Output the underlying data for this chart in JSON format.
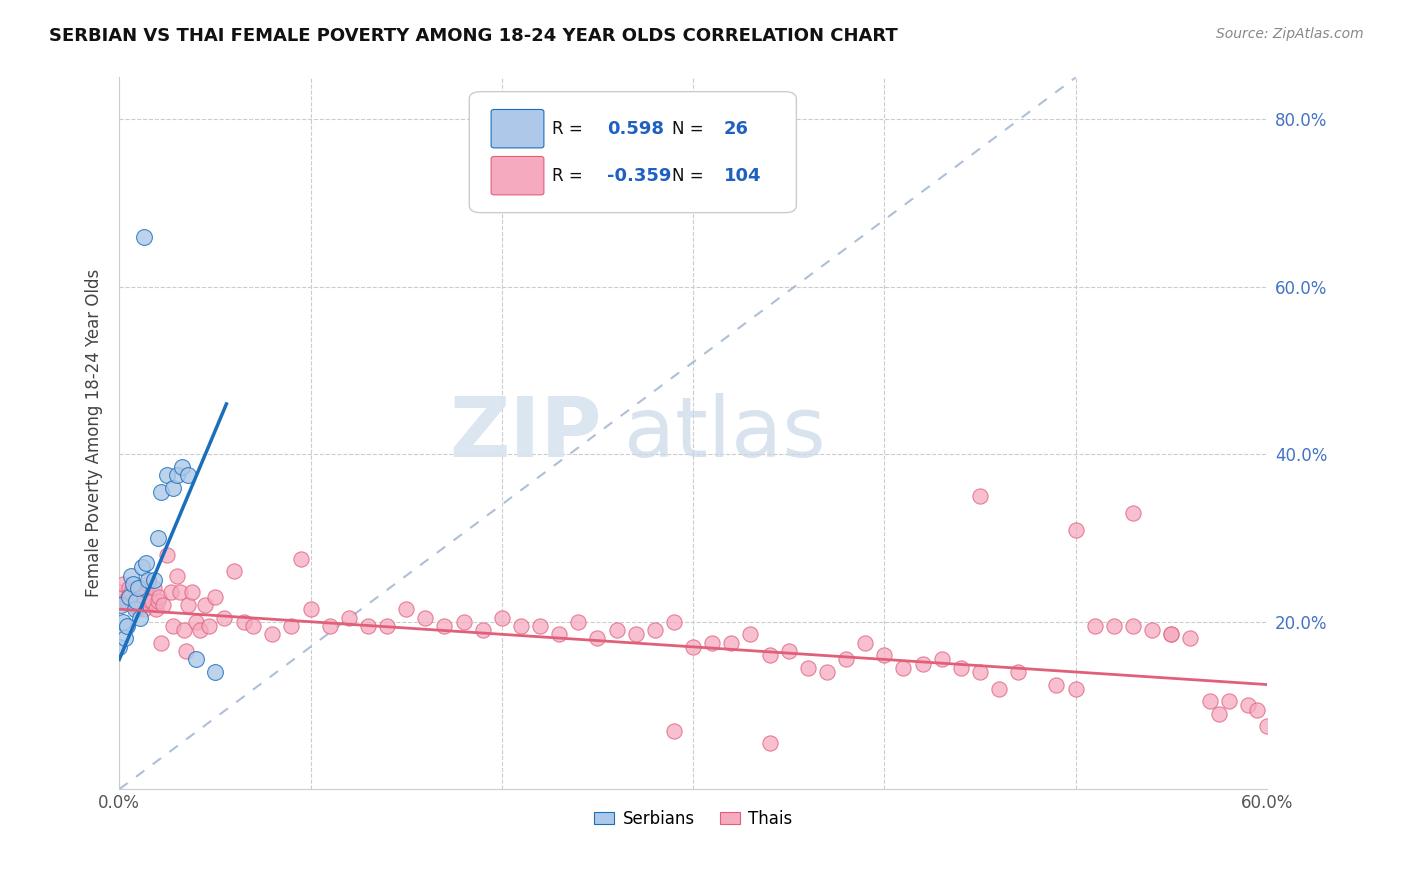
{
  "title": "SERBIAN VS THAI FEMALE POVERTY AMONG 18-24 YEAR OLDS CORRELATION CHART",
  "source": "Source: ZipAtlas.com",
  "ylabel": "Female Poverty Among 18-24 Year Olds",
  "xlim": [
    0.0,
    0.6
  ],
  "ylim": [
    0.0,
    0.85
  ],
  "serbian_color": "#adc8e8",
  "thai_color": "#f5aabf",
  "serbian_line_color": "#1a6fbd",
  "thai_line_color": "#e0607a",
  "dashed_line_color": "#9ab0cc",
  "legend_R_serbian": "0.598",
  "legend_N_serbian": "26",
  "legend_R_thai": "-0.359",
  "legend_N_thai": "104",
  "serbian_x": [
    0.0,
    0.001,
    0.002,
    0.003,
    0.004,
    0.005,
    0.006,
    0.007,
    0.008,
    0.009,
    0.01,
    0.011,
    0.012,
    0.013,
    0.014,
    0.015,
    0.018,
    0.02,
    0.022,
    0.025,
    0.028,
    0.03,
    0.033,
    0.036,
    0.04,
    0.05
  ],
  "serbian_y": [
    0.17,
    0.22,
    0.2,
    0.18,
    0.195,
    0.23,
    0.255,
    0.245,
    0.215,
    0.225,
    0.24,
    0.205,
    0.265,
    0.66,
    0.27,
    0.25,
    0.25,
    0.3,
    0.355,
    0.375,
    0.36,
    0.375,
    0.385,
    0.375,
    0.155,
    0.14
  ],
  "thai_x": [
    0.0,
    0.001,
    0.002,
    0.003,
    0.004,
    0.005,
    0.006,
    0.007,
    0.008,
    0.009,
    0.01,
    0.01,
    0.011,
    0.012,
    0.013,
    0.014,
    0.015,
    0.016,
    0.017,
    0.018,
    0.019,
    0.02,
    0.021,
    0.022,
    0.023,
    0.025,
    0.027,
    0.028,
    0.03,
    0.032,
    0.034,
    0.036,
    0.038,
    0.04,
    0.042,
    0.045,
    0.047,
    0.05,
    0.055,
    0.06,
    0.065,
    0.07,
    0.08,
    0.09,
    0.1,
    0.11,
    0.12,
    0.13,
    0.14,
    0.15,
    0.16,
    0.17,
    0.18,
    0.19,
    0.2,
    0.21,
    0.22,
    0.23,
    0.24,
    0.25,
    0.26,
    0.27,
    0.28,
    0.29,
    0.3,
    0.31,
    0.32,
    0.33,
    0.34,
    0.35,
    0.36,
    0.37,
    0.38,
    0.39,
    0.4,
    0.41,
    0.42,
    0.43,
    0.44,
    0.45,
    0.46,
    0.47,
    0.49,
    0.5,
    0.51,
    0.52,
    0.53,
    0.54,
    0.55,
    0.56,
    0.57,
    0.575,
    0.58,
    0.59,
    0.595,
    0.6,
    0.34,
    0.29,
    0.45,
    0.5,
    0.53,
    0.55,
    0.095,
    0.035
  ],
  "thai_y": [
    0.235,
    0.23,
    0.245,
    0.225,
    0.225,
    0.24,
    0.235,
    0.22,
    0.24,
    0.22,
    0.24,
    0.215,
    0.23,
    0.22,
    0.215,
    0.24,
    0.245,
    0.225,
    0.225,
    0.24,
    0.215,
    0.225,
    0.23,
    0.175,
    0.22,
    0.28,
    0.235,
    0.195,
    0.255,
    0.235,
    0.19,
    0.22,
    0.235,
    0.2,
    0.19,
    0.22,
    0.195,
    0.23,
    0.205,
    0.26,
    0.2,
    0.195,
    0.185,
    0.195,
    0.215,
    0.195,
    0.205,
    0.195,
    0.195,
    0.215,
    0.205,
    0.195,
    0.2,
    0.19,
    0.205,
    0.195,
    0.195,
    0.185,
    0.2,
    0.18,
    0.19,
    0.185,
    0.19,
    0.2,
    0.17,
    0.175,
    0.175,
    0.185,
    0.16,
    0.165,
    0.145,
    0.14,
    0.155,
    0.175,
    0.16,
    0.145,
    0.15,
    0.155,
    0.145,
    0.14,
    0.12,
    0.14,
    0.125,
    0.12,
    0.195,
    0.195,
    0.195,
    0.19,
    0.185,
    0.18,
    0.105,
    0.09,
    0.105,
    0.1,
    0.095,
    0.075,
    0.055,
    0.07,
    0.35,
    0.31,
    0.33,
    0.185,
    0.275,
    0.165
  ]
}
